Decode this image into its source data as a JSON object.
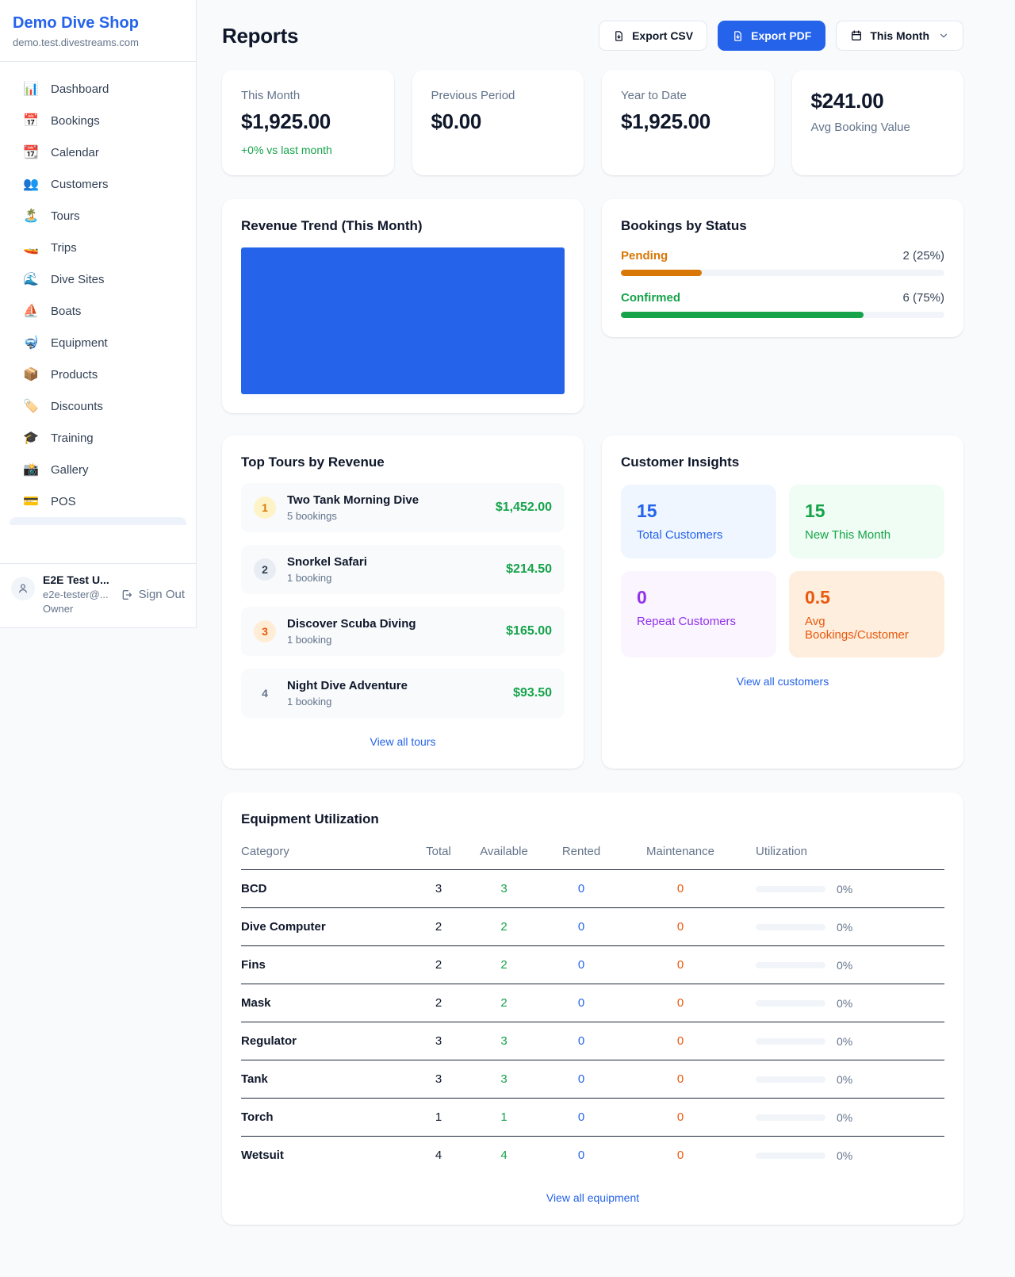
{
  "accents": {
    "primary_blue": "#2563eb",
    "green": "#16a34a",
    "amber": "#d97706",
    "orange": "#ea580c",
    "purple": "#9333ea"
  },
  "sidebar": {
    "shop_name": "Demo Dive Shop",
    "shop_domain": "demo.test.divestreams.com",
    "items": [
      {
        "icon": "📊",
        "label": "Dashboard"
      },
      {
        "icon": "📅",
        "label": "Bookings"
      },
      {
        "icon": "📆",
        "label": "Calendar"
      },
      {
        "icon": "👥",
        "label": "Customers"
      },
      {
        "icon": "🏝️",
        "label": "Tours"
      },
      {
        "icon": "🚤",
        "label": "Trips"
      },
      {
        "icon": "🌊",
        "label": "Dive Sites"
      },
      {
        "icon": "⛵",
        "label": "Boats"
      },
      {
        "icon": "🤿",
        "label": "Equipment"
      },
      {
        "icon": "📦",
        "label": "Products"
      },
      {
        "icon": "🏷️",
        "label": "Discounts"
      },
      {
        "icon": "🎓",
        "label": "Training"
      },
      {
        "icon": "📸",
        "label": "Gallery"
      },
      {
        "icon": "💳",
        "label": "POS"
      }
    ],
    "user": {
      "name": "E2E Test U...",
      "email": "e2e-tester@...",
      "role": "Owner",
      "sign_out_label": "Sign Out"
    }
  },
  "header": {
    "title": "Reports",
    "export_csv_label": "Export CSV",
    "export_pdf_label": "Export PDF",
    "period_label": "This Month"
  },
  "stats": [
    {
      "label": "This Month",
      "value": "$1,925.00",
      "note": "+0% vs last month"
    },
    {
      "label": "Previous Period",
      "value": "$0.00"
    },
    {
      "label": "Year to Date",
      "value": "$1,925.00"
    },
    {
      "label": "Avg Booking Value",
      "value": "$241.00"
    }
  ],
  "revenue_trend": {
    "title": "Revenue Trend (This Month)"
  },
  "bookings_by_status": {
    "title": "Bookings by Status",
    "rows": [
      {
        "label": "Pending",
        "count_text": "2 (25%)",
        "percent": 25
      },
      {
        "label": "Confirmed",
        "count_text": "6 (75%)",
        "percent": 75
      }
    ]
  },
  "top_tours": {
    "title": "Top Tours by Revenue",
    "rows": [
      {
        "rank": "1",
        "name": "Two Tank Morning Dive",
        "bookings": "5 bookings",
        "amount": "$1,452.00"
      },
      {
        "rank": "2",
        "name": "Snorkel Safari",
        "bookings": "1 booking",
        "amount": "$214.50"
      },
      {
        "rank": "3",
        "name": "Discover Scuba Diving",
        "bookings": "1 booking",
        "amount": "$165.00"
      },
      {
        "rank": "4",
        "name": "Night Dive Adventure",
        "bookings": "1 booking",
        "amount": "$93.50"
      }
    ],
    "view_all": "View all tours"
  },
  "customer_insights": {
    "title": "Customer Insights",
    "tiles": [
      {
        "value": "15",
        "label": "Total Customers"
      },
      {
        "value": "15",
        "label": "New This Month"
      },
      {
        "value": "0",
        "label": "Repeat Customers"
      },
      {
        "value": "0.5",
        "label": "Avg Bookings/Customer"
      }
    ],
    "view_all": "View all customers"
  },
  "equipment": {
    "title": "Equipment Utilization",
    "columns": [
      "Category",
      "Total",
      "Available",
      "Rented",
      "Maintenance",
      "Utilization"
    ],
    "rows": [
      {
        "category": "BCD",
        "total": "3",
        "available": "3",
        "rented": "0",
        "maintenance": "0",
        "utilization": "0%"
      },
      {
        "category": "Dive Computer",
        "total": "2",
        "available": "2",
        "rented": "0",
        "maintenance": "0",
        "utilization": "0%"
      },
      {
        "category": "Fins",
        "total": "2",
        "available": "2",
        "rented": "0",
        "maintenance": "0",
        "utilization": "0%"
      },
      {
        "category": "Mask",
        "total": "2",
        "available": "2",
        "rented": "0",
        "maintenance": "0",
        "utilization": "0%"
      },
      {
        "category": "Regulator",
        "total": "3",
        "available": "3",
        "rented": "0",
        "maintenance": "0",
        "utilization": "0%"
      },
      {
        "category": "Tank",
        "total": "3",
        "available": "3",
        "rented": "0",
        "maintenance": "0",
        "utilization": "0%"
      },
      {
        "category": "Torch",
        "total": "1",
        "available": "1",
        "rented": "0",
        "maintenance": "0",
        "utilization": "0%"
      },
      {
        "category": "Wetsuit",
        "total": "4",
        "available": "4",
        "rented": "0",
        "maintenance": "0",
        "utilization": "0%"
      }
    ],
    "view_all": "View all equipment"
  }
}
